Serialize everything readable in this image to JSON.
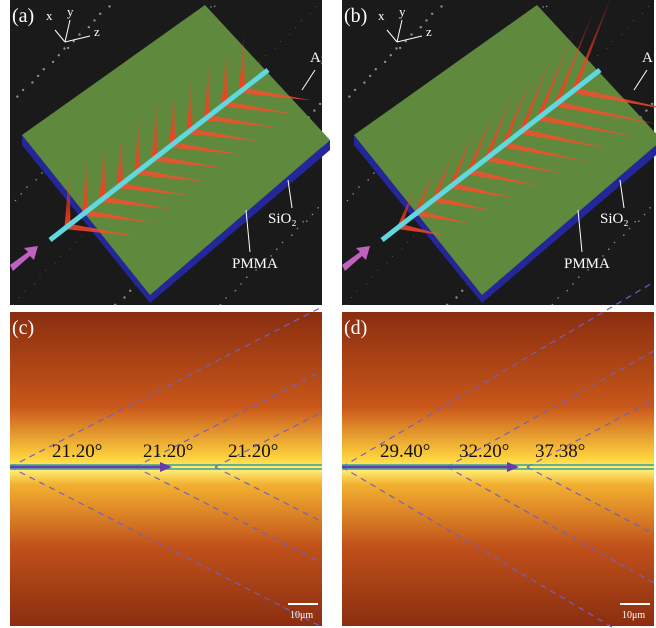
{
  "panels": [
    {
      "label": "(a)",
      "axes": [
        "x",
        "y",
        "z"
      ],
      "annotations": [
        "Ag",
        "SiO₂",
        "PMMA"
      ]
    },
    {
      "label": "(b)",
      "axes": [
        "x",
        "y",
        "z"
      ],
      "annotations": [
        "A",
        "SiO₂",
        "PMMA"
      ]
    },
    {
      "label": "(c)",
      "angles": [
        "21.20°",
        "21.20°",
        "21.20°"
      ],
      "scale_bar": "10μm"
    },
    {
      "label": "(d)",
      "angles": [
        "29.40°",
        "32.20°",
        "37.38°"
      ],
      "scale_bar": "10μm"
    }
  ]
}
